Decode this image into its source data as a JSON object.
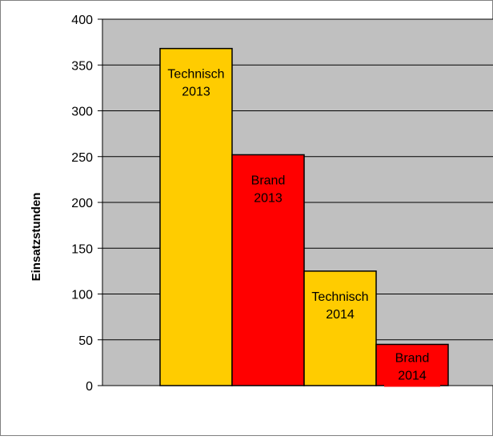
{
  "chart_data": {
    "type": "bar",
    "title": "",
    "xlabel": "",
    "ylabel": "Einsatzstunden",
    "ylim": [
      0,
      400
    ],
    "yticks": [
      0,
      50,
      100,
      150,
      200,
      250,
      300,
      350,
      400
    ],
    "grid": true,
    "legend": "none",
    "bars": [
      {
        "label": [
          "Technisch",
          "2013"
        ],
        "value": 368,
        "color": "#FFCC00"
      },
      {
        "label": [
          "Brand",
          "2013"
        ],
        "value": 252,
        "color": "#FF0000"
      },
      {
        "label": [
          "Technisch",
          "2014"
        ],
        "value": 125,
        "color": "#FFCC00"
      },
      {
        "label": [
          "Brand",
          "2014"
        ],
        "value": 45,
        "color": "#FF0000"
      }
    ]
  },
  "colors": {
    "plot_background": "#C0C0C0",
    "gridline": "#000000",
    "bar_outline": "#000000",
    "frame": "#808080"
  }
}
